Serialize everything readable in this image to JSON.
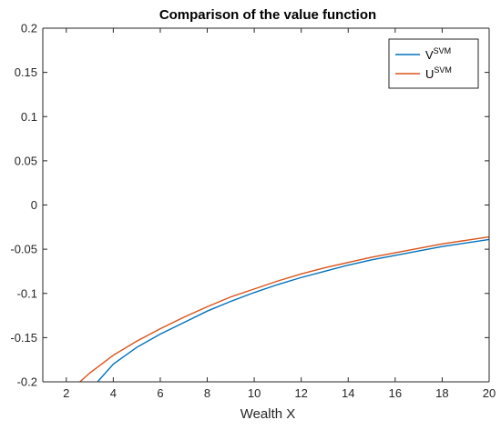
{
  "chart_data": {
    "type": "line",
    "title": "Comparison of the value function",
    "xlabel": "Wealth X",
    "ylabel": "",
    "xlim": [
      1,
      20
    ],
    "ylim": [
      -0.2,
      0.2
    ],
    "xticks": [
      2,
      4,
      6,
      8,
      10,
      12,
      14,
      16,
      18,
      20
    ],
    "yticks": [
      -0.2,
      -0.15,
      -0.1,
      -0.05,
      0,
      0.05,
      0.1,
      0.15,
      0.2
    ],
    "ytick_labels": [
      "-0.2",
      "-0.15",
      "-0.1",
      "-0.05",
      "0",
      "0.05",
      "0.1",
      "0.15",
      "0.2"
    ],
    "grid": false,
    "legend_position": "top-right",
    "series": [
      {
        "base": "V",
        "sup": "SVM",
        "color": "#0072BD",
        "x": [
          3.33,
          4,
          5,
          6,
          7,
          8,
          9,
          10,
          11,
          12,
          13,
          14,
          15,
          16,
          17,
          18,
          19,
          20
        ],
        "y": [
          -0.2,
          -0.18,
          -0.161,
          -0.146,
          -0.133,
          -0.12,
          -0.109,
          -0.099,
          -0.09,
          -0.082,
          -0.075,
          -0.068,
          -0.062,
          -0.057,
          -0.052,
          -0.047,
          -0.043,
          -0.039
        ]
      },
      {
        "base": "U",
        "sup": "SVM",
        "color": "#D95319",
        "x": [
          2.58,
          3,
          4,
          5,
          6,
          7,
          8,
          9,
          10,
          11,
          12,
          13,
          14,
          15,
          16,
          17,
          18,
          19,
          20
        ],
        "y": [
          -0.2,
          -0.19,
          -0.17,
          -0.154,
          -0.14,
          -0.127,
          -0.115,
          -0.104,
          -0.095,
          -0.086,
          -0.078,
          -0.071,
          -0.065,
          -0.059,
          -0.054,
          -0.049,
          -0.044,
          -0.04,
          -0.036
        ]
      }
    ]
  }
}
